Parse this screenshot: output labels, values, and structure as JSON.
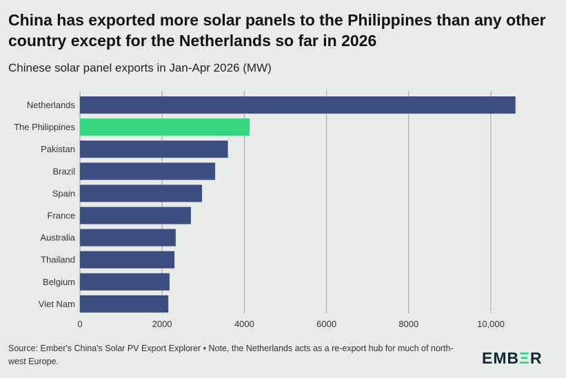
{
  "header": {
    "title": "China has exported more solar panels to the Philippines than any other country except for the Netherlands so far in 2026",
    "subtitle": "Chinese solar panel exports in Jan-Apr 2026 (MW)"
  },
  "footer": {
    "source": "Source: Ember's China's Solar PV Export Explorer • Note, the Netherlands acts as a re-export hub for much of north-west Europe.",
    "logo_pre": "EMB",
    "logo_mid": "Ξ",
    "logo_post": "R"
  },
  "colors": {
    "bar": "#3d4d7e",
    "highlight": "#35d47e",
    "grid": "#9aa0a8"
  },
  "chart_data": {
    "type": "bar",
    "orientation": "horizontal",
    "categories": [
      "Netherlands",
      "The Philippines",
      "Pakistan",
      "Brazil",
      "Spain",
      "France",
      "Australia",
      "Thailand",
      "Belgium",
      "Viet Nam"
    ],
    "values": [
      10600,
      4130,
      3600,
      3290,
      2970,
      2700,
      2330,
      2300,
      2180,
      2150
    ],
    "highlight_index": 1,
    "xlim": [
      0,
      11000
    ],
    "xticks": [
      0,
      2000,
      4000,
      6000,
      8000,
      10000
    ],
    "xtick_labels": [
      "0",
      "2000",
      "4000",
      "6000",
      "8000",
      "10,000"
    ],
    "grid": true
  }
}
